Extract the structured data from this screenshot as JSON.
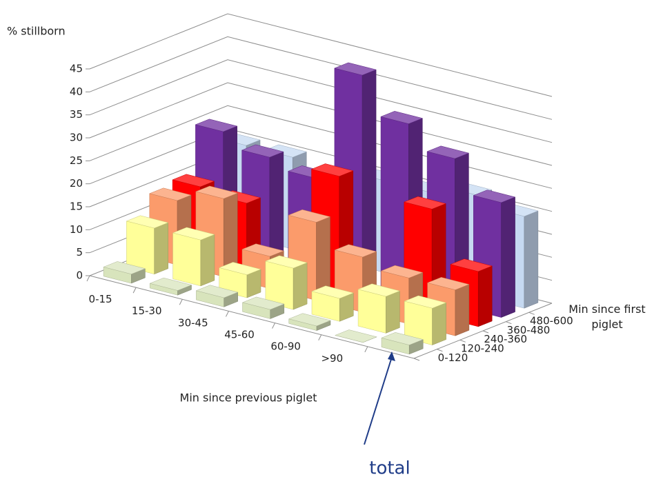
{
  "chart_data": {
    "type": "bar3d",
    "y_label": "% stillborn",
    "x_label": "Min since previous piglet",
    "z_label": "Min since first piglet",
    "annotation": "total",
    "categories": [
      "0-15",
      "15-30",
      "30-45",
      "45-60",
      "60-90",
      ">90",
      null
    ],
    "series": [
      {
        "name": "0-120",
        "color": "#d8e4bc",
        "values": [
          2,
          1,
          2,
          2,
          1,
          0,
          2
        ]
      },
      {
        "name": "120-240",
        "color": "#ffff99",
        "values": [
          10,
          10,
          5,
          9,
          5,
          8,
          8
        ]
      },
      {
        "name": "240-360",
        "color": "#fb9b6b",
        "values": [
          14,
          17,
          7,
          17,
          12,
          10,
          10
        ]
      },
      {
        "name": "360-480",
        "color": "#ff0000",
        "values": [
          15,
          14,
          1,
          25,
          0.5,
          23,
          12
        ]
      },
      {
        "name": "480-600",
        "color": "#7030a0",
        "values": [
          25,
          22,
          20,
          45,
          37,
          32,
          25
        ]
      },
      {
        "name": null,
        "color": "#c6d9f1",
        "values": [
          20,
          20,
          17,
          20,
          20,
          22,
          20
        ]
      }
    ],
    "ylim": [
      0,
      45
    ],
    "yticks": [
      0,
      5,
      10,
      15,
      20,
      25,
      30,
      35,
      40,
      45
    ],
    "grid": true
  }
}
